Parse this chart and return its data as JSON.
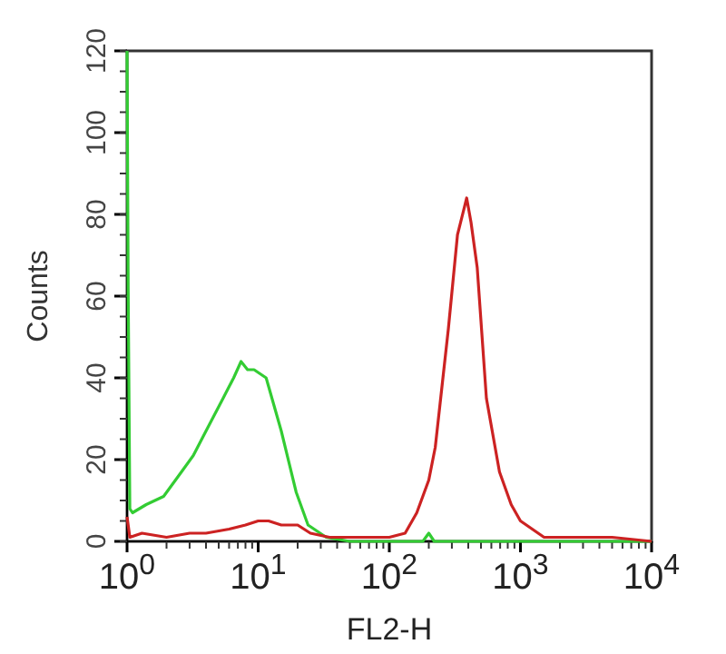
{
  "chart_data": {
    "type": "line",
    "xlabel": "FL2-H",
    "ylabel": "Counts",
    "log": "x",
    "grid": false,
    "marker": "none",
    "line_style": "solid",
    "xlim": [
      1,
      10000
    ],
    "ylim": [
      0,
      120
    ],
    "xticks": [
      {
        "value": 1,
        "label": "10$^{0}$"
      },
      {
        "value": 10,
        "label": "10$^{1}$"
      },
      {
        "value": 100,
        "label": "10$^{2}$"
      },
      {
        "value": 1000,
        "label": "10$^{3}$"
      },
      {
        "value": 10000,
        "label": "10$^{4}$"
      }
    ],
    "yticks": [
      0,
      20,
      40,
      60,
      80,
      100,
      120
    ],
    "series": [
      {
        "color": "#33cc33",
        "x": [
          1,
          1.02,
          1.05,
          1.1,
          1.4,
          1.9,
          2.6,
          3.2,
          4,
          5.4,
          6.5,
          7.4,
          8.3,
          9.3,
          11.5,
          13,
          15,
          19.5,
          24,
          33,
          50,
          100,
          180,
          200,
          220,
          400,
          1000,
          10000
        ],
        "values": [
          120,
          62,
          8,
          7,
          9,
          11,
          17,
          21,
          27,
          35,
          40,
          44,
          42,
          42,
          40,
          34,
          27,
          12,
          4,
          1,
          0,
          0,
          0,
          2,
          0,
          0,
          0,
          0
        ]
      },
      {
        "color": "#cc2222",
        "x": [
          1,
          1.05,
          1.3,
          2,
          3,
          4,
          6,
          8,
          10,
          12,
          15,
          20,
          25,
          35,
          50,
          70,
          100,
          132,
          162,
          200,
          224,
          282,
          331,
          389,
          420,
          468,
          550,
          692,
          850,
          1000,
          1514,
          2500,
          5000,
          10000
        ],
        "values": [
          6,
          1,
          2,
          1,
          2,
          2,
          3,
          4,
          5,
          5,
          4,
          4,
          2,
          1,
          1,
          1,
          1,
          2,
          7,
          15,
          23,
          52,
          75,
          84,
          78,
          67,
          35,
          17,
          9,
          5,
          1,
          1,
          1,
          0
        ]
      }
    ]
  }
}
